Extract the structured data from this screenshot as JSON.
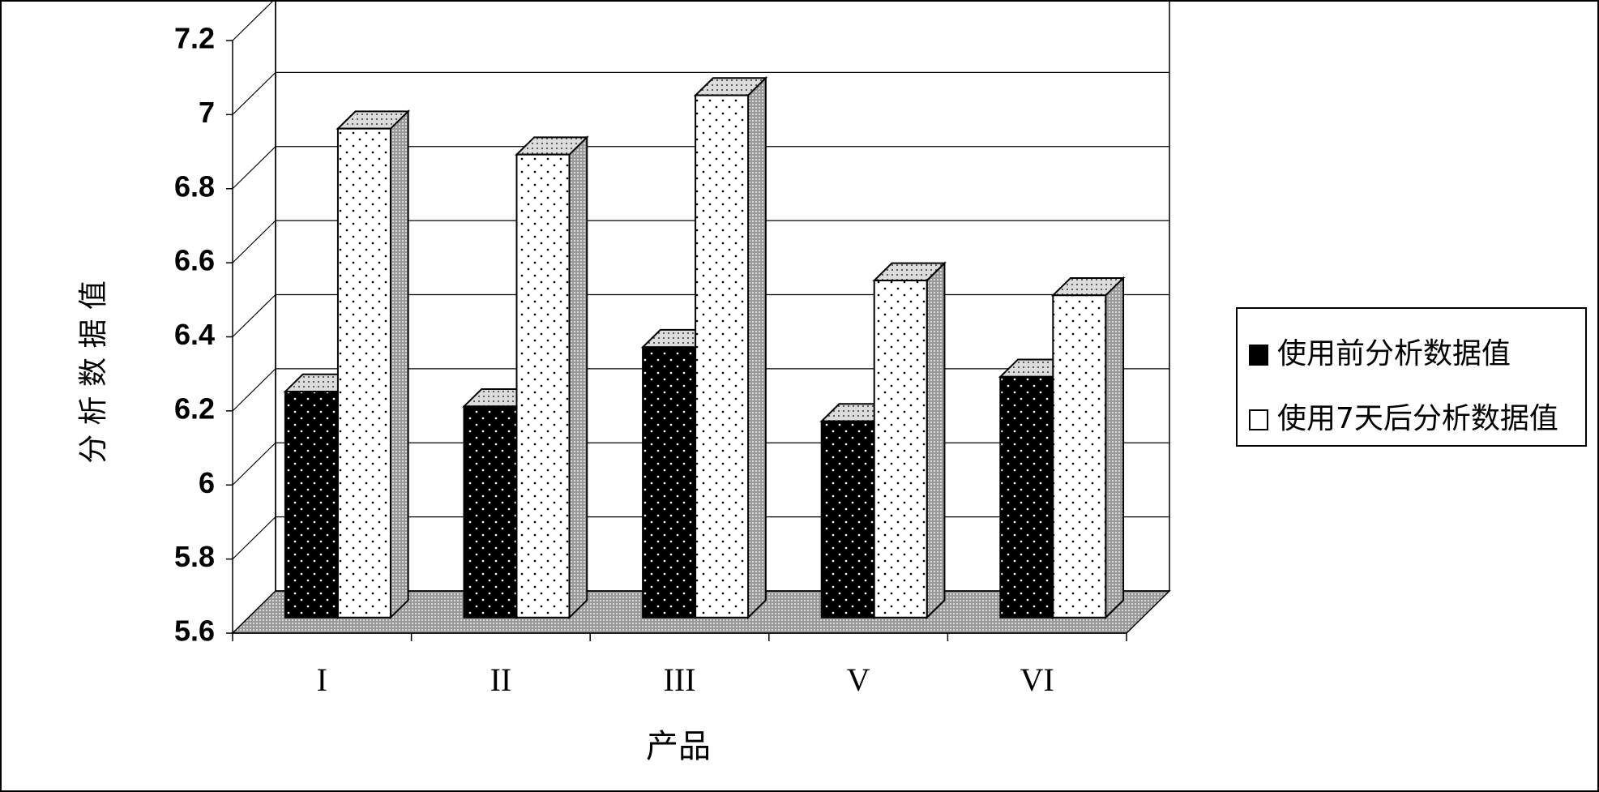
{
  "chart_data": {
    "type": "bar3d",
    "x_label": "产品",
    "y_label": "分 析 数 据 值",
    "categories": [
      "I",
      "II",
      "III",
      "V",
      "VI"
    ],
    "series": [
      {
        "name": "使用前分析数据值",
        "color": "#000000",
        "values": [
          6.21,
          6.17,
          6.33,
          6.13,
          6.25
        ]
      },
      {
        "name": "使用7天后分析数据值",
        "color": "#ffffff",
        "values": [
          6.92,
          6.85,
          7.01,
          6.51,
          6.47
        ]
      }
    ],
    "ylim": [
      5.6,
      7.2
    ],
    "yticks": [
      5.6,
      5.8,
      6,
      6.2,
      6.4,
      6.6,
      6.8,
      7,
      7.2
    ],
    "grid": true,
    "legend": "right"
  }
}
